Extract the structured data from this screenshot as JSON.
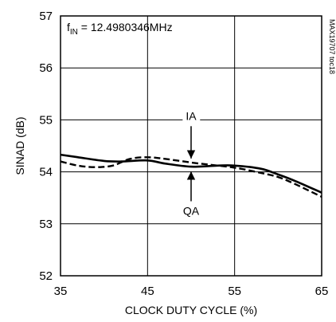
{
  "chart_data": {
    "type": "line",
    "xlabel": "CLOCK DUTY CYCLE (%)",
    "ylabel": "SINAD (dB)",
    "xlim": [
      35,
      65
    ],
    "ylim": [
      52,
      57
    ],
    "xticks": [
      35,
      45,
      55,
      65
    ],
    "yticks": [
      52,
      53,
      54,
      55,
      56,
      57
    ],
    "grid": true,
    "annotation_prefix": "f",
    "annotation_sub": "IN",
    "annotation_value": " = 12.4980346MHz",
    "figure_id": "MAX19707 toc18",
    "series": [
      {
        "name": "QA",
        "style": "solid",
        "x": [
          35,
          37,
          40,
          42,
          45,
          47,
          50,
          53,
          55,
          58,
          60,
          62,
          65
        ],
        "y": [
          54.33,
          54.28,
          54.21,
          54.2,
          54.22,
          54.16,
          54.1,
          54.12,
          54.12,
          54.06,
          53.95,
          53.82,
          53.6
        ]
      },
      {
        "name": "IA",
        "style": "dashed",
        "x": [
          35,
          37,
          39,
          41,
          43,
          45,
          47,
          50,
          52,
          55,
          58,
          60,
          62,
          65
        ],
        "y": [
          54.2,
          54.12,
          54.09,
          54.12,
          54.25,
          54.28,
          54.25,
          54.18,
          54.14,
          54.08,
          53.98,
          53.9,
          53.76,
          53.52
        ]
      }
    ],
    "arrow_x": 50,
    "colors": {
      "line": "#000000",
      "grid": "#000000",
      "background": "#ffffff"
    }
  }
}
